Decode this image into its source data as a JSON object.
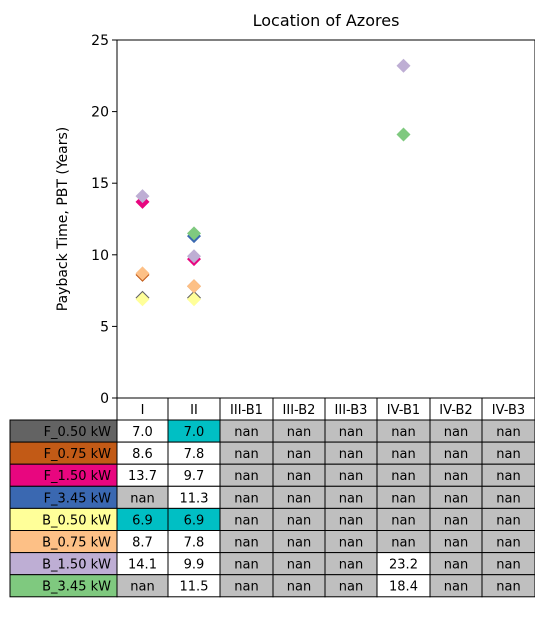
{
  "chart_data": {
    "type": "scatter",
    "title": "Location of Azores",
    "ylabel": "Payback Time, PBT (Years)",
    "xlabel": "",
    "ylim": [
      0,
      25
    ],
    "yticks": [
      0,
      5,
      10,
      15,
      20,
      25
    ],
    "grid": false,
    "marker": "diamond",
    "categories": [
      "I",
      "II",
      "III-B1",
      "III-B2",
      "III-B3",
      "IV-B1",
      "IV-B2",
      "IV-B3"
    ],
    "series": [
      {
        "name": "F_0.50 kW",
        "color": "#636363",
        "values": [
          "7.0",
          "7.0",
          "nan",
          "nan",
          "nan",
          "nan",
          "nan",
          "nan"
        ],
        "highlight": [
          1
        ]
      },
      {
        "name": "F_0.75 kW",
        "color": "#c25a16",
        "values": [
          "8.6",
          "7.8",
          "nan",
          "nan",
          "nan",
          "nan",
          "nan",
          "nan"
        ],
        "highlight": []
      },
      {
        "name": "F_1.50 kW",
        "color": "#e8067f",
        "values": [
          "13.7",
          "9.7",
          "nan",
          "nan",
          "nan",
          "nan",
          "nan",
          "nan"
        ],
        "highlight": []
      },
      {
        "name": "F_3.45 kW",
        "color": "#3a68b1",
        "values": [
          "nan",
          "11.3",
          "nan",
          "nan",
          "nan",
          "nan",
          "nan",
          "nan"
        ],
        "highlight": []
      },
      {
        "name": "B_0.50 kW",
        "color": "#ffff99",
        "values": [
          "6.9",
          "6.9",
          "nan",
          "nan",
          "nan",
          "nan",
          "nan",
          "nan"
        ],
        "highlight": [
          0,
          1
        ]
      },
      {
        "name": "B_0.75 kW",
        "color": "#fdc086",
        "values": [
          "8.7",
          "7.8",
          "nan",
          "nan",
          "nan",
          "nan",
          "nan",
          "nan"
        ],
        "highlight": []
      },
      {
        "name": "B_1.50 kW",
        "color": "#beaed4",
        "values": [
          "14.1",
          "9.9",
          "nan",
          "nan",
          "nan",
          "23.2",
          "nan",
          "nan"
        ],
        "highlight": []
      },
      {
        "name": "B_3.45 kW",
        "color": "#7fc97f",
        "values": [
          "nan",
          "11.5",
          "nan",
          "nan",
          "nan",
          "18.4",
          "nan",
          "nan"
        ],
        "highlight": []
      }
    ],
    "colors": {
      "nan_cell": "#bfbfbf",
      "highlight_cell": "#00bfc4",
      "value_cell": "#ffffff"
    }
  }
}
